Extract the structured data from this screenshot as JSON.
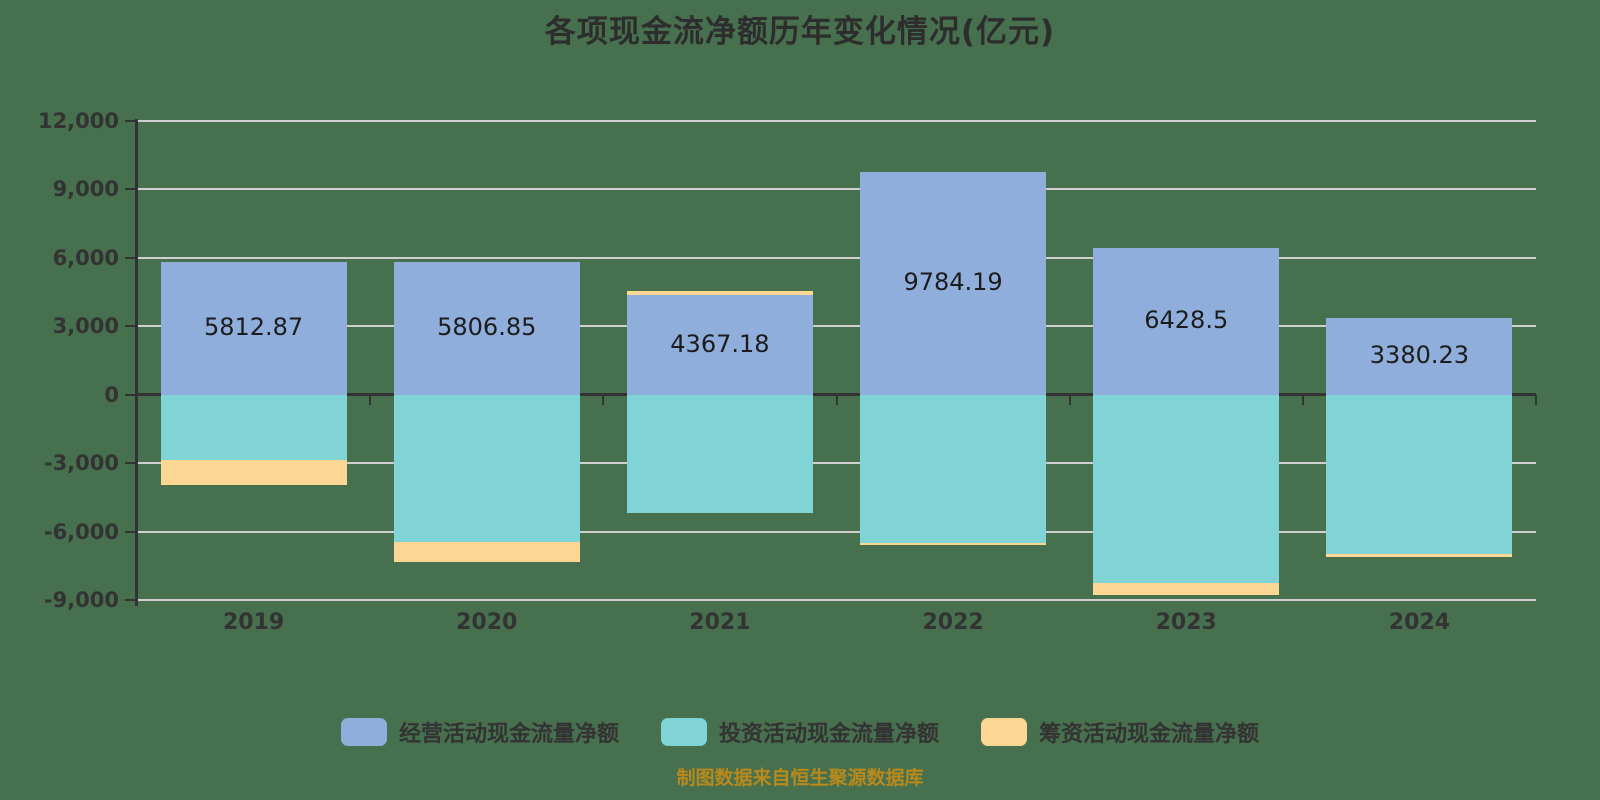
{
  "chart_data": {
    "type": "bar",
    "stacked": true,
    "title": "各项现金流净额历年变化情况(亿元)",
    "footer": "制图数据来自恒生聚源数据库",
    "categories": [
      "2019",
      "2020",
      "2021",
      "2022",
      "2023",
      "2024"
    ],
    "series": [
      {
        "id": "operating",
        "name": "经营活动现金流量净额",
        "color": "#90AEDB",
        "show_labels": true,
        "values": [
          5812.87,
          5806.85,
          4367.18,
          9784.19,
          6428.5,
          3380.23
        ]
      },
      {
        "id": "investing",
        "name": "投资活动现金流量净额",
        "color": "#80D4D6",
        "show_labels": false,
        "values": [
          -2880,
          -6450,
          -5190,
          -6510,
          -8240,
          -6970
        ]
      },
      {
        "id": "financing",
        "name": "筹资活动现金流量净额",
        "color": "#FBD793",
        "show_labels": false,
        "values": [
          -1070,
          -880,
          190,
          -85,
          -545,
          -130
        ]
      }
    ],
    "y_axis": {
      "min": -9000,
      "max": 12000,
      "ticks": [
        12000,
        9000,
        6000,
        3000,
        0,
        -3000,
        -6000,
        -9000
      ],
      "grid": true
    },
    "legend_position": "bottom",
    "colors": {
      "background": "#47704F",
      "grid": "#CFCFCF",
      "axis": "#333333",
      "axis_text": "#333333",
      "title_text": "#2D2D2D",
      "value_label_text": "#1C1C1C",
      "footer_text": "#B8891B"
    }
  }
}
